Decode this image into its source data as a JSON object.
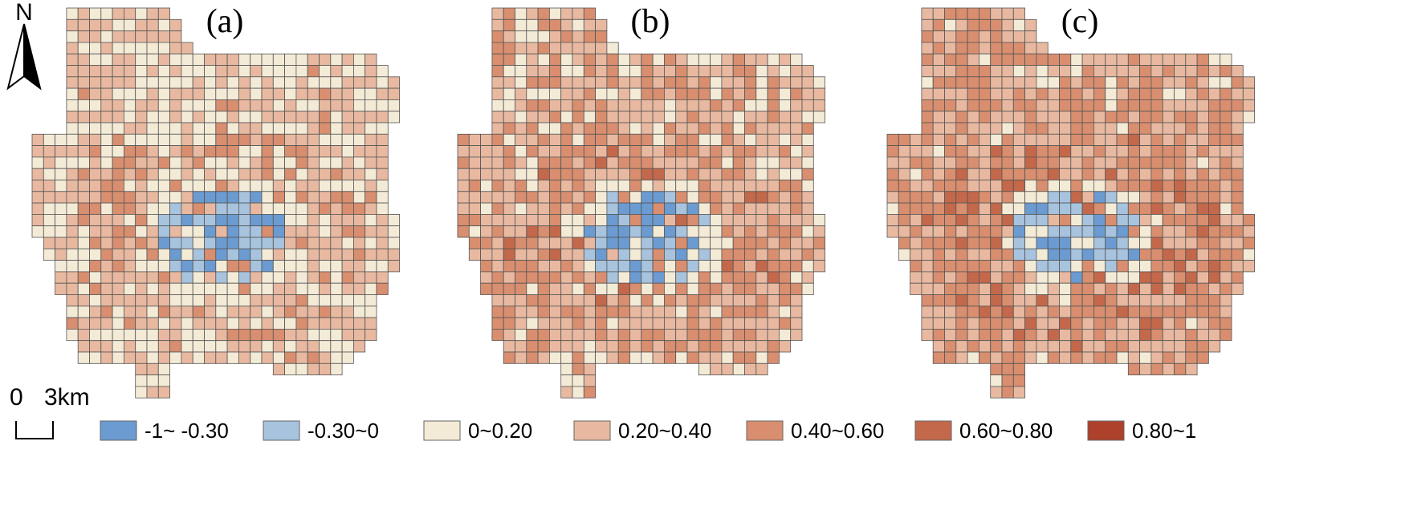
{
  "panels": [
    {
      "label": "(a)"
    },
    {
      "label": "(b)"
    },
    {
      "label": "(c)"
    }
  ],
  "north": "N",
  "scale": {
    "start": "0",
    "end": "3km"
  },
  "legend": [
    {
      "label": "-1~ -0.30",
      "color": "#6b9bd1"
    },
    {
      "label": "-0.30~0",
      "color": "#a7c3de"
    },
    {
      "label": "0~0.20",
      "color": "#f4ebd7"
    },
    {
      "label": "0.20~0.40",
      "color": "#e8b9a0"
    },
    {
      "label": "0.40~0.60",
      "color": "#d88e6f"
    },
    {
      "label": "0.60~0.80",
      "color": "#c3684a"
    },
    {
      "label": "0.80~1",
      "color": "#ad412b"
    }
  ]
}
